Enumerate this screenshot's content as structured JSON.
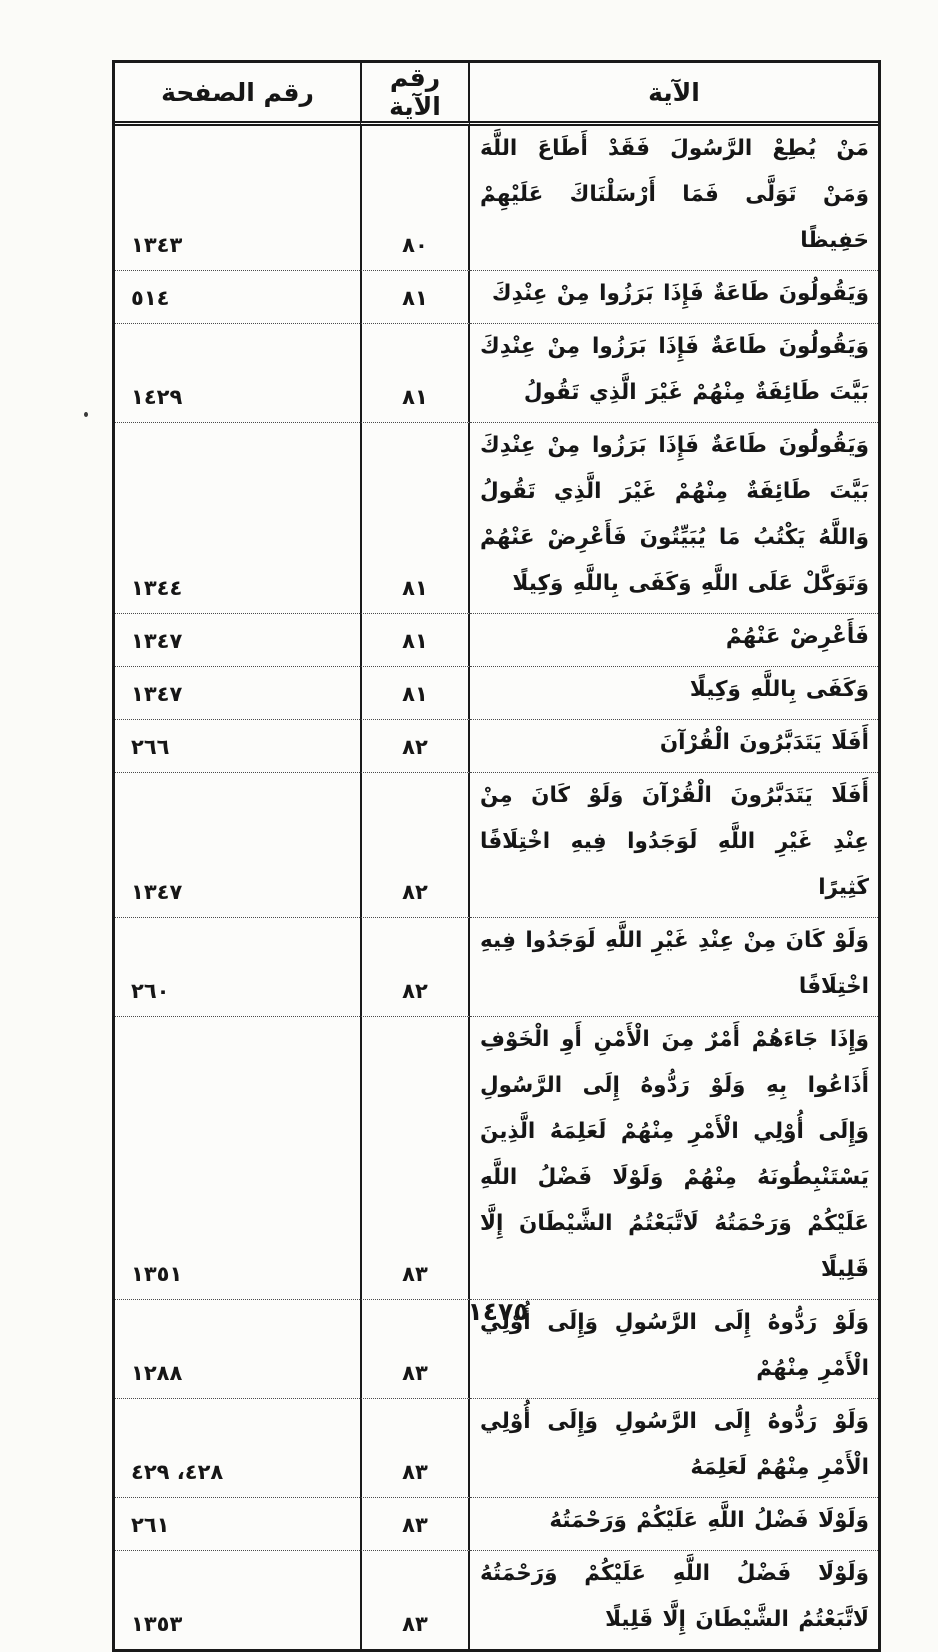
{
  "table": {
    "headers": {
      "ayah": "الآية",
      "ayah_number": "رقم الآية",
      "page_number": "رقم الصفحة"
    },
    "rows": [
      {
        "verse": "مَنْ يُطِعْ الرَّسُولَ فَقَدْ أَطَاعَ اللَّهَ وَمَنْ تَوَلَّى فَمَا أَرْسَلْنَاكَ عَلَيْهِمْ حَفِيظًا",
        "ayah_no": "٨٠",
        "page_no": "١٣٤٣"
      },
      {
        "verse": "وَيَقُولُونَ طَاعَةٌ فَإِذَا بَرَزُوا مِنْ عِنْدِكَ",
        "ayah_no": "٨١",
        "page_no": "٥١٤"
      },
      {
        "verse": "وَيَقُولُونَ طَاعَةٌ فَإِذَا بَرَزُوا مِنْ عِنْدِكَ بَيَّتَ طَائِفَةٌ مِنْهُمْ غَيْرَ الَّذِي تَقُولُ",
        "ayah_no": "٨١",
        "page_no": "١٤٢٩"
      },
      {
        "verse": "وَيَقُولُونَ طَاعَةٌ فَإِذَا بَرَزُوا مِنْ عِنْدِكَ بَيَّتَ طَائِفَةٌ مِنْهُمْ غَيْرَ الَّذِي تَقُولُ وَاللَّهُ يَكْتُبُ مَا يُبَيِّتُونَ فَأَعْرِضْ عَنْهُمْ وَتَوَكَّلْ عَلَى اللَّهِ وَكَفَى بِاللَّهِ وَكِيلًا",
        "ayah_no": "٨١",
        "page_no": "١٣٤٤"
      },
      {
        "verse": "فَأَعْرِضْ عَنْهُمْ",
        "ayah_no": "٨١",
        "page_no": "١٣٤٧"
      },
      {
        "verse": "وَكَفَى بِاللَّهِ وَكِيلًا",
        "ayah_no": "٨١",
        "page_no": "١٣٤٧"
      },
      {
        "verse": "أَفَلَا يَتَدَبَّرُونَ الْقُرْآنَ",
        "ayah_no": "٨٢",
        "page_no": "٢٦٦"
      },
      {
        "verse": "أَفَلَا يَتَدَبَّرُونَ الْقُرْآنَ وَلَوْ كَانَ مِنْ عِنْدِ غَيْرِ اللَّهِ لَوَجَدُوا فِيهِ اخْتِلَافًا كَثِيرًا",
        "ayah_no": "٨٢",
        "page_no": "١٣٤٧"
      },
      {
        "verse": "وَلَوْ كَانَ مِنْ عِنْدِ غَيْرِ اللَّهِ لَوَجَدُوا فِيهِ اخْتِلَافًا",
        "ayah_no": "٨٢",
        "page_no": "٢٦٠"
      },
      {
        "verse": "وَإِذَا جَاءَهُمْ أَمْرٌ مِنَ الْأَمْنِ أَوِ الْخَوْفِ أَذَاعُوا بِهِ وَلَوْ رَدُّوهُ إِلَى الرَّسُولِ وَإِلَى أُوْلِي الْأَمْرِ مِنْهُمْ لَعَلِمَهُ الَّذِينَ يَسْتَنْبِطُونَهُ مِنْهُمْ وَلَوْلَا فَضْلُ اللَّهِ عَلَيْكُمْ وَرَحْمَتُهُ لَاتَّبَعْتُمُ الشَّيْطَانَ إِلَّا قَلِيلًا",
        "ayah_no": "٨٣",
        "page_no": "١٣٥١"
      },
      {
        "verse": "وَلَوْ رَدُّوهُ إِلَى الرَّسُولِ وَإِلَى أُوْلِي الْأَمْرِ مِنْهُمْ",
        "ayah_no": "٨٣",
        "page_no": "١٢٨٨"
      },
      {
        "verse": "وَلَوْ رَدُّوهُ إِلَى الرَّسُولِ وَإِلَى أُوْلِي الْأَمْرِ مِنْهُمْ لَعَلِمَهُ",
        "ayah_no": "٨٣",
        "page_no": "٤٢٨، ٤٢٩"
      },
      {
        "verse": "وَلَوْلَا فَضْلُ اللَّهِ عَلَيْكُمْ وَرَحْمَتُهُ",
        "ayah_no": "٨٣",
        "page_no": "٢٦١"
      },
      {
        "verse": "وَلَوْلَا فَضْلُ اللَّهِ عَلَيْكُمْ وَرَحْمَتُهُ لَاتَّبَعْتُمُ الشَّيْطَانَ إِلَّا قَلِيلًا",
        "ayah_no": "٨٣",
        "page_no": "١٣٥٣"
      }
    ]
  },
  "footer": {
    "page_number": "١٤٧٥"
  }
}
